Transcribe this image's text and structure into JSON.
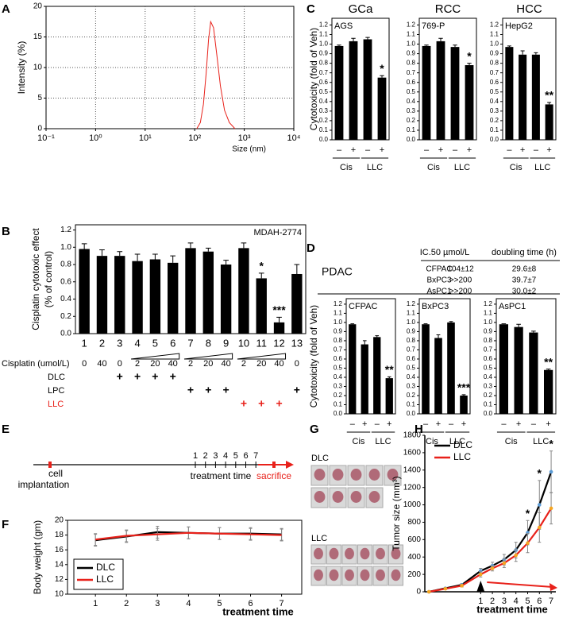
{
  "chart_data": [
    {
      "panel": "A",
      "type": "line",
      "ylabel": "Intensity (%)",
      "xlabel": "Size (nm)",
      "xlog": true,
      "xlim": [
        0.1,
        10000
      ],
      "xticks": [
        {
          "value": 0.1,
          "label": "10⁻¹"
        },
        {
          "value": 1,
          "label": "10⁰"
        },
        {
          "value": 10,
          "label": "10¹"
        },
        {
          "value": 100,
          "label": "10²"
        },
        {
          "value": 1000,
          "label": "10³"
        },
        {
          "value": 10000,
          "label": "10⁴"
        }
      ],
      "ylim": [
        0,
        20
      ],
      "yticks": [
        0,
        5,
        10,
        15,
        20
      ],
      "grid": true,
      "x": [
        110,
        130,
        150,
        170,
        190,
        210,
        240,
        280,
        330,
        400,
        500,
        650
      ],
      "series": [
        {
          "color": "#e8211a",
          "values": [
            0,
            1,
            4,
            9,
            14.5,
            17.5,
            16.5,
            12,
            7,
            3,
            1,
            0
          ]
        }
      ]
    },
    {
      "panel": "B",
      "type": "bar",
      "color": "#000000",
      "ylabel": [
        "Cisplatin cytotoxic effect",
        "(% of control)"
      ],
      "annotation": "MDAH-2774",
      "ylim": [
        0,
        1.26
      ],
      "yticks": [
        {
          "value": 0,
          "label": "0.0"
        },
        0.2,
        0.4,
        0.6,
        0.8,
        {
          "value": 1,
          "label": "1.0"
        },
        1.2
      ],
      "categories": [
        "1",
        "2",
        "3",
        "4",
        "5",
        "6",
        "7",
        "8",
        "9",
        "10",
        "11",
        "12",
        "13"
      ],
      "values": [
        0.98,
        0.9,
        0.9,
        0.84,
        0.86,
        0.82,
        0.99,
        0.95,
        0.8,
        0.99,
        0.64,
        0.13,
        0.69
      ],
      "errors": [
        0.06,
        0.07,
        0.05,
        0.08,
        0.06,
        0.08,
        0.06,
        0.04,
        0.05,
        0.06,
        0.06,
        0.06,
        0.11
      ],
      "significance": [
        null,
        null,
        null,
        null,
        null,
        null,
        null,
        null,
        null,
        null,
        "*",
        "***",
        null
      ],
      "rows": [
        {
          "label": "Cisplatin (umol/L)",
          "color": "#000000",
          "cells": [
            "0",
            "40",
            "0",
            "2",
            "20",
            "40",
            "2",
            "20",
            "40",
            "2",
            "20",
            "40",
            "0"
          ]
        },
        {
          "label": "DLC",
          "color": "#000000",
          "cells": [
            null,
            null,
            "+",
            "+",
            "+",
            "+",
            null,
            null,
            null,
            null,
            null,
            null,
            null
          ]
        },
        {
          "label": "LPC",
          "color": "#000000",
          "cells": [
            null,
            null,
            null,
            null,
            null,
            null,
            "+",
            "+",
            "+",
            null,
            null,
            null,
            "+"
          ]
        },
        {
          "label": "LLC",
          "color": "#e8211a",
          "cells": [
            null,
            null,
            null,
            null,
            null,
            null,
            null,
            null,
            null,
            "+",
            "+",
            "+",
            null
          ]
        }
      ]
    },
    {
      "panel": "C",
      "type": "bar",
      "title": "GCa",
      "cell_line": "AGS",
      "color": "#000000",
      "ylabel": "Cytotoxicity (fold of Veh)",
      "ylim": [
        0,
        1.27
      ],
      "yticks": [
        {
          "value": 0,
          "label": "0.0"
        },
        0.1,
        0.2,
        0.3,
        0.4,
        0.5,
        0.6,
        0.7,
        0.8,
        0.9,
        {
          "value": 1,
          "label": "1.0"
        },
        1.1,
        1.2
      ],
      "categories": [
        "–",
        "+",
        "–",
        "+"
      ],
      "groups": [
        "Cis",
        "LLC"
      ],
      "values": [
        0.98,
        1.03,
        1.05,
        0.65
      ],
      "errors": [
        0.01,
        0.03,
        0.02,
        0.02
      ],
      "significance": [
        null,
        null,
        null,
        "*"
      ]
    },
    {
      "type": "bar",
      "title": "RCC",
      "cell_line": "769-P",
      "color": "#000000",
      "ylim": [
        0,
        1.27
      ],
      "yticks": [
        {
          "value": 0,
          "label": "0.0"
        },
        0.1,
        0.2,
        0.3,
        0.4,
        0.5,
        0.6,
        0.7,
        0.8,
        0.9,
        {
          "value": 1,
          "label": "1.0"
        },
        1.1,
        1.2
      ],
      "categories": [
        "–",
        "+",
        "–",
        "+"
      ],
      "groups": [
        "Cis",
        "LLC"
      ],
      "values": [
        0.98,
        1.03,
        0.97,
        0.78
      ],
      "errors": [
        0.01,
        0.03,
        0.02,
        0.02
      ],
      "significance": [
        null,
        null,
        null,
        "*"
      ]
    },
    {
      "type": "bar",
      "title": "HCC",
      "cell_line": "HepG2",
      "color": "#000000",
      "ylim": [
        0,
        1.27
      ],
      "yticks": [
        {
          "value": 0,
          "label": "0.0"
        },
        0.1,
        0.2,
        0.3,
        0.4,
        0.5,
        0.6,
        0.7,
        0.8,
        0.9,
        {
          "value": 1,
          "label": "1.0"
        },
        1.1,
        1.2
      ],
      "categories": [
        "–",
        "+",
        "–",
        "+"
      ],
      "groups": [
        "Cis",
        "LLC"
      ],
      "values": [
        0.97,
        0.89,
        0.89,
        0.37
      ],
      "errors": [
        0.01,
        0.04,
        0.02,
        0.02
      ],
      "significance": [
        null,
        null,
        null,
        "**"
      ]
    },
    {
      "panel": "D",
      "type": "table",
      "title": "PDAC",
      "columns": [
        "IC.50 µmol/L",
        "doubling time (h)"
      ],
      "rows": [
        [
          "CFPAC",
          "104±12",
          "29.6±8"
        ],
        [
          "BxPC3",
          ">>200",
          "39.7±7"
        ],
        [
          "AsPC1",
          ">>200",
          "30.0±2"
        ]
      ]
    },
    {
      "type": "bar",
      "cell_line": "CFPAC",
      "color": "#000000",
      "ylabel": "Cytotoxicity (fold of Veh)",
      "ylim": [
        0,
        1.26
      ],
      "yticks": [
        {
          "value": 0,
          "label": "0.0"
        },
        0.1,
        0.2,
        0.3,
        0.4,
        0.5,
        0.6,
        0.7,
        0.8,
        0.9,
        {
          "value": 1,
          "label": "1.0"
        },
        1.1,
        1.2
      ],
      "categories": [
        "–",
        "+",
        "–",
        "+"
      ],
      "groups": [
        "Cis",
        "LLC"
      ],
      "values": [
        0.98,
        0.76,
        0.84,
        0.39
      ],
      "errors": [
        0.005,
        0.04,
        0.015,
        0.015
      ],
      "significance": [
        null,
        null,
        null,
        "**"
      ]
    },
    {
      "type": "bar",
      "cell_line": "BxPC3",
      "color": "#000000",
      "ylim": [
        0,
        1.26
      ],
      "yticks": [
        {
          "value": 0,
          "label": "0.0"
        },
        0.1,
        0.2,
        0.3,
        0.4,
        0.5,
        0.6,
        0.7,
        0.8,
        0.9,
        {
          "value": 1,
          "label": "1.0"
        },
        1.1,
        1.2
      ],
      "categories": [
        "–",
        "+",
        "–",
        "+"
      ],
      "groups": [
        "Cis",
        "LLC"
      ],
      "values": [
        0.98,
        0.83,
        1.0,
        0.2
      ],
      "errors": [
        0.005,
        0.035,
        0.01,
        0.01
      ],
      "significance": [
        null,
        null,
        null,
        "***"
      ]
    },
    {
      "type": "bar",
      "cell_line": "AsPC1",
      "color": "#000000",
      "ylim": [
        0,
        1.26
      ],
      "yticks": [
        {
          "value": 0,
          "label": "0.0"
        },
        0.1,
        0.2,
        0.3,
        0.4,
        0.5,
        0.6,
        0.7,
        0.8,
        0.9,
        {
          "value": 1,
          "label": "1.0"
        },
        1.1,
        1.2
      ],
      "categories": [
        "–",
        "+",
        "–",
        "+"
      ],
      "groups": [
        "Cis",
        "LLC"
      ],
      "values": [
        0.98,
        0.95,
        0.89,
        0.48
      ],
      "errors": [
        0.005,
        0.03,
        0.015,
        0.01
      ],
      "significance": [
        null,
        null,
        null,
        "**"
      ]
    },
    {
      "panel": "E",
      "type": "timeline",
      "implantation": [
        "cell",
        "implantation"
      ],
      "treatment": "treatment time",
      "sacrifice": "sacrifice",
      "days": [
        "1",
        "2",
        "3",
        "4",
        "5",
        "6",
        "7"
      ]
    },
    {
      "panel": "F",
      "type": "line",
      "ylabel": "Body weight (gm)",
      "xlabel": "treatment time",
      "xlim": [
        0.1,
        7.65
      ],
      "xticks": [
        1,
        2,
        3,
        4,
        5,
        6,
        7
      ],
      "ylim": [
        10,
        20
      ],
      "yticks": [
        10,
        12,
        14,
        16,
        18,
        20
      ],
      "legend": "lower left",
      "x": [
        1,
        2,
        3,
        4,
        5,
        6,
        7
      ],
      "series": [
        {
          "name": "DLC",
          "color": "#000000",
          "values": [
            17.3,
            17.8,
            18.4,
            18.3,
            18.2,
            18.2,
            18.1
          ],
          "errors": [
            0.8,
            0.8,
            0.8,
            0.8,
            0.8,
            0.8,
            0.8
          ]
        },
        {
          "name": "LLC",
          "color": "#e8211a",
          "values": [
            17.4,
            17.9,
            18.1,
            18.3,
            18.2,
            18.1,
            18.0
          ],
          "errors": [
            0.8,
            0.8,
            0.8,
            0.8,
            0.8,
            0.8,
            0.8
          ]
        }
      ]
    },
    {
      "panel": "G",
      "type": "images",
      "groups": [
        "DLC",
        "LLC"
      ]
    },
    {
      "panel": "H",
      "type": "line",
      "ylabel": "Tumor size (mm³)",
      "xlabel": "treatment time",
      "xlim": [
        -3.75,
        7.4
      ],
      "xticks": [
        1,
        2,
        3,
        4,
        5,
        6,
        7
      ],
      "ylim": [
        0,
        1800
      ],
      "yticks": [
        0,
        200,
        400,
        600,
        800,
        1000,
        1200,
        1400,
        1600,
        1800
      ],
      "legend": "upper left",
      "x": [
        -3.4,
        -2,
        -0.6,
        1,
        2,
        3,
        4,
        5,
        6,
        7
      ],
      "series": [
        {
          "name": "DLC",
          "color": "#000000",
          "marker_color": "#5b9bd5",
          "values": [
            0,
            40,
            80,
            240,
            300,
            370,
            480,
            680,
            1000,
            1380
          ],
          "errors": [
            0,
            10,
            15,
            30,
            40,
            60,
            90,
            140,
            280,
            240
          ],
          "significance": [
            null,
            null,
            null,
            null,
            null,
            null,
            null,
            "*",
            "*",
            "*"
          ]
        },
        {
          "name": "LLC",
          "color": "#e8211a",
          "marker_color": "#f5a623",
          "values": [
            0,
            35,
            70,
            200,
            270,
            330,
            420,
            560,
            740,
            960
          ],
          "errors": [
            0,
            10,
            15,
            30,
            30,
            50,
            70,
            110,
            170,
            180
          ]
        }
      ]
    }
  ]
}
